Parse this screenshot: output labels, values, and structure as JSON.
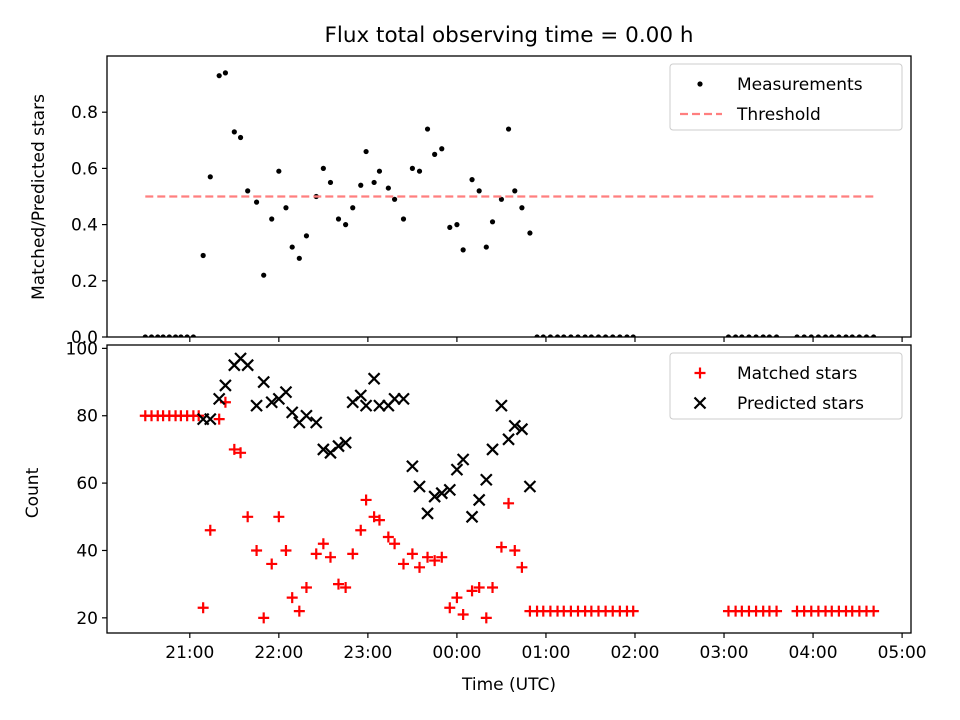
{
  "chart_data": [
    {
      "type": "scatter",
      "title": "Flux total observing time = 0.00 h",
      "ylabel": "Matched/Predicted stars",
      "xlabel": "",
      "xlim": [
        20.07,
        29.1
      ],
      "ylim": [
        0,
        1.0
      ],
      "yticks": [
        0.0,
        0.2,
        0.4,
        0.6,
        0.8
      ],
      "ytick_labels": [
        "0.0",
        "0.2",
        "0.4",
        "0.6",
        "0.8"
      ],
      "legend_position": "top-right",
      "series": [
        {
          "name": "Measurements",
          "style": "dot",
          "color": "#000000",
          "x": [
            20.5,
            20.57,
            20.64,
            20.7,
            20.77,
            20.84,
            20.9,
            20.97,
            21.04,
            21.15,
            21.23,
            21.33,
            21.4,
            21.5,
            21.57,
            21.65,
            21.75,
            21.83,
            21.92,
            22.0,
            22.08,
            22.15,
            22.23,
            22.31,
            22.42,
            22.5,
            22.58,
            22.67,
            22.75,
            22.83,
            22.92,
            22.98,
            23.07,
            23.13,
            23.23,
            23.3,
            23.4,
            23.5,
            23.58,
            23.67,
            23.75,
            23.83,
            23.92,
            24.0,
            24.07,
            24.17,
            24.25,
            24.33,
            24.4,
            24.5,
            24.58,
            24.65,
            24.73,
            24.82,
            24.9,
            24.97,
            25.05,
            25.13,
            25.2,
            25.28,
            25.36,
            25.44,
            25.51,
            25.59,
            25.67,
            25.75,
            25.83,
            25.91,
            25.98,
            27.05,
            27.13,
            27.2,
            27.28,
            27.36,
            27.44,
            27.51,
            27.59,
            27.82,
            27.9,
            27.98,
            28.06,
            28.14,
            28.21,
            28.29,
            28.37,
            28.44,
            28.52,
            28.6,
            28.68
          ],
          "y": [
            0,
            0,
            0,
            0,
            0,
            0,
            0,
            0,
            0,
            0.29,
            0.57,
            0.93,
            0.94,
            0.73,
            0.71,
            0.52,
            0.48,
            0.22,
            0.42,
            0.59,
            0.46,
            0.32,
            0.28,
            0.36,
            0.5,
            0.6,
            0.55,
            0.42,
            0.4,
            0.46,
            0.54,
            0.66,
            0.55,
            0.59,
            0.53,
            0.49,
            0.42,
            0.6,
            0.59,
            0.74,
            0.65,
            0.67,
            0.39,
            0.4,
            0.31,
            0.56,
            0.52,
            0.32,
            0.41,
            0.49,
            0.74,
            0.52,
            0.46,
            0.37,
            0,
            0,
            0,
            0,
            0,
            0,
            0,
            0,
            0,
            0,
            0,
            0,
            0,
            0,
            0,
            0,
            0,
            0,
            0,
            0,
            0,
            0,
            0,
            0,
            0,
            0,
            0,
            0,
            0,
            0,
            0,
            0,
            0,
            0,
            0
          ]
        },
        {
          "name": "Threshold",
          "style": "dashed-line",
          "color": "#ff7f7f",
          "x": [
            20.5,
            28.7
          ],
          "y": [
            0.5,
            0.5
          ]
        }
      ]
    },
    {
      "type": "scatter",
      "title": "",
      "xlabel": "Time (UTC)",
      "ylabel": "Count",
      "xlim": [
        20.07,
        29.1
      ],
      "ylim": [
        15.5,
        101
      ],
      "xticks": [
        21,
        22,
        23,
        24,
        25,
        26,
        27,
        28,
        29
      ],
      "xtick_labels": [
        "21:00",
        "22:00",
        "23:00",
        "00:00",
        "01:00",
        "02:00",
        "03:00",
        "04:00",
        "05:00"
      ],
      "yticks": [
        20,
        40,
        60,
        80,
        100
      ],
      "ytick_labels": [
        "20",
        "40",
        "60",
        "80",
        "100"
      ],
      "legend_position": "top-right",
      "series": [
        {
          "name": "Matched stars",
          "style": "plus",
          "color": "#ff0000",
          "x": [
            20.5,
            20.57,
            20.64,
            20.7,
            20.77,
            20.84,
            20.9,
            20.97,
            21.04,
            21.1,
            21.15,
            21.23,
            21.33,
            21.4,
            21.5,
            21.57,
            21.65,
            21.75,
            21.83,
            21.92,
            22.0,
            22.08,
            22.15,
            22.23,
            22.31,
            22.42,
            22.5,
            22.58,
            22.67,
            22.75,
            22.83,
            22.92,
            22.98,
            23.07,
            23.13,
            23.23,
            23.3,
            23.4,
            23.5,
            23.58,
            23.67,
            23.75,
            23.83,
            23.92,
            24.0,
            24.07,
            24.17,
            24.25,
            24.33,
            24.4,
            24.5,
            24.58,
            24.65,
            24.73,
            24.82,
            24.9,
            24.97,
            25.05,
            25.13,
            25.2,
            25.28,
            25.36,
            25.44,
            25.51,
            25.59,
            25.67,
            25.75,
            25.83,
            25.91,
            25.98,
            27.05,
            27.13,
            27.2,
            27.28,
            27.36,
            27.44,
            27.51,
            27.59,
            27.82,
            27.9,
            27.98,
            28.06,
            28.14,
            28.21,
            28.29,
            28.37,
            28.44,
            28.52,
            28.6,
            28.68
          ],
          "y": [
            80,
            80,
            80,
            80,
            80,
            80,
            80,
            80,
            80,
            80,
            23,
            46,
            79,
            84,
            70,
            69,
            50,
            40,
            20,
            36,
            50,
            40,
            26,
            22,
            29,
            39,
            42,
            38,
            30,
            29,
            39,
            46,
            55,
            50,
            49,
            44,
            42,
            36,
            39,
            35,
            38,
            37,
            38,
            23,
            26,
            21,
            28,
            29,
            20,
            29,
            41,
            54,
            40,
            35,
            22,
            22,
            22,
            22,
            22,
            22,
            22,
            22,
            22,
            22,
            22,
            22,
            22,
            22,
            22,
            22,
            22,
            22,
            22,
            22,
            22,
            22,
            22,
            22,
            22,
            22,
            22,
            22,
            22,
            22,
            22,
            22,
            22,
            22,
            22,
            22
          ]
        },
        {
          "name": "Predicted stars",
          "style": "x",
          "color": "#000000",
          "x": [
            21.15,
            21.23,
            21.33,
            21.4,
            21.5,
            21.57,
            21.65,
            21.75,
            21.83,
            21.92,
            22.0,
            22.08,
            22.15,
            22.23,
            22.31,
            22.42,
            22.5,
            22.58,
            22.67,
            22.75,
            22.83,
            22.92,
            22.98,
            23.07,
            23.13,
            23.23,
            23.3,
            23.4,
            23.5,
            23.58,
            23.67,
            23.75,
            23.83,
            23.92,
            24.0,
            24.07,
            24.17,
            24.25,
            24.33,
            24.4,
            24.5,
            24.58,
            24.65,
            24.73,
            24.82
          ],
          "y": [
            79,
            79,
            85,
            89,
            95,
            97,
            95,
            83,
            90,
            84,
            85,
            87,
            81,
            78,
            80,
            78,
            70,
            69,
            71,
            72,
            84,
            86,
            83,
            91,
            83,
            83,
            85,
            85,
            65,
            59,
            51,
            56,
            57,
            58,
            64,
            67,
            50,
            55,
            61,
            70,
            83,
            73,
            77,
            76,
            59
          ]
        }
      ]
    }
  ]
}
